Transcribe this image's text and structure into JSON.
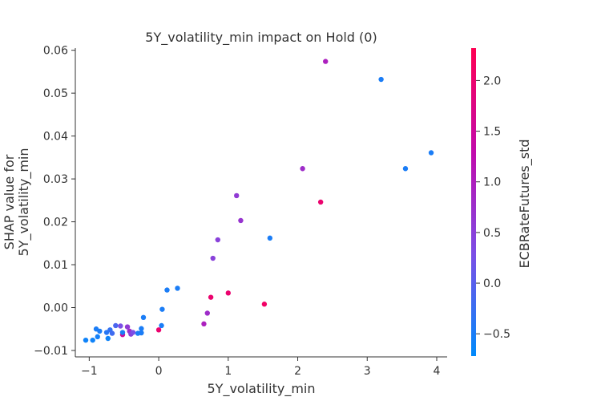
{
  "chart_data": {
    "type": "scatter",
    "title": "5Y_volatility_min impact on Hold (0)",
    "xlabel": "5Y_volatility_min",
    "ylabel": "SHAP value for\n5Y_volatility_min",
    "colorbar_label": "ECBRateFutures_std",
    "xlim": [
      -1.2,
      4.15
    ],
    "ylim": [
      -0.0115,
      0.0605
    ],
    "xticks": [
      -1,
      0,
      1,
      2,
      3,
      4
    ],
    "yticks": [
      -0.01,
      0.0,
      0.01,
      0.02,
      0.03,
      0.04,
      0.05,
      0.06
    ],
    "ytick_labels": [
      "−0.01",
      "0.00",
      "0.01",
      "0.02",
      "0.03",
      "0.04",
      "0.05",
      "0.06"
    ],
    "xtick_labels": [
      "−1",
      "0",
      "1",
      "2",
      "3",
      "4"
    ],
    "color_range": [
      -0.72,
      2.32
    ],
    "colorbar_ticks": [
      -0.5,
      0.0,
      0.5,
      1.0,
      1.5,
      2.0
    ],
    "colorbar_tick_labels": [
      "−0.5",
      "0.0",
      "0.5",
      "1.0",
      "1.5",
      "2.0"
    ],
    "colormap": [
      "#008afb",
      "#7b4fe6",
      "#c10bac",
      "#ff0052"
    ],
    "points": [
      {
        "x": -1.05,
        "y": -0.0076,
        "c": -0.6
      },
      {
        "x": -0.95,
        "y": -0.0076,
        "c": -0.6
      },
      {
        "x": -0.9,
        "y": -0.005,
        "c": -0.5
      },
      {
        "x": -0.85,
        "y": -0.0055,
        "c": -0.5
      },
      {
        "x": -0.88,
        "y": -0.0068,
        "c": -0.55
      },
      {
        "x": -0.75,
        "y": -0.0058,
        "c": -0.4
      },
      {
        "x": -0.73,
        "y": -0.0072,
        "c": -0.6
      },
      {
        "x": -0.7,
        "y": -0.0052,
        "c": -0.3
      },
      {
        "x": -0.67,
        "y": -0.006,
        "c": -0.2
      },
      {
        "x": -0.62,
        "y": -0.0042,
        "c": -0.1
      },
      {
        "x": -0.55,
        "y": -0.0043,
        "c": 0.3
      },
      {
        "x": -0.52,
        "y": -0.0063,
        "c": 1.5
      },
      {
        "x": -0.52,
        "y": -0.0058,
        "c": -0.5
      },
      {
        "x": -0.45,
        "y": -0.0045,
        "c": 0.6
      },
      {
        "x": -0.42,
        "y": -0.0055,
        "c": 0.8
      },
      {
        "x": -0.4,
        "y": -0.0062,
        "c": 0.5
      },
      {
        "x": -0.37,
        "y": -0.0058,
        "c": 0.3
      },
      {
        "x": -0.3,
        "y": -0.006,
        "c": -0.5
      },
      {
        "x": -0.25,
        "y": -0.0049,
        "c": -0.5
      },
      {
        "x": -0.25,
        "y": -0.0059,
        "c": -0.5
      },
      {
        "x": -0.22,
        "y": -0.0023,
        "c": -0.5
      },
      {
        "x": 0.0,
        "y": -0.0052,
        "c": 2.0
      },
      {
        "x": 0.04,
        "y": -0.0042,
        "c": -0.5
      },
      {
        "x": 0.05,
        "y": -0.0004,
        "c": -0.5
      },
      {
        "x": 0.12,
        "y": 0.0041,
        "c": -0.5
      },
      {
        "x": 0.27,
        "y": 0.0045,
        "c": -0.5
      },
      {
        "x": 0.65,
        "y": -0.0038,
        "c": 1.0
      },
      {
        "x": 0.7,
        "y": -0.0013,
        "c": 0.8
      },
      {
        "x": 0.75,
        "y": 0.0024,
        "c": 2.0
      },
      {
        "x": 0.78,
        "y": 0.0115,
        "c": 0.5
      },
      {
        "x": 0.85,
        "y": 0.0158,
        "c": 0.5
      },
      {
        "x": 1.0,
        "y": 0.0034,
        "c": 2.0
      },
      {
        "x": 1.12,
        "y": 0.0261,
        "c": 0.6
      },
      {
        "x": 1.18,
        "y": 0.0203,
        "c": 0.7
      },
      {
        "x": 1.52,
        "y": 0.0008,
        "c": 2.1
      },
      {
        "x": 1.6,
        "y": 0.0162,
        "c": -0.5
      },
      {
        "x": 2.07,
        "y": 0.0324,
        "c": 0.8
      },
      {
        "x": 2.33,
        "y": 0.0246,
        "c": 2.0
      },
      {
        "x": 2.4,
        "y": 0.0574,
        "c": 1.0
      },
      {
        "x": 3.2,
        "y": 0.0532,
        "c": -0.5
      },
      {
        "x": 3.55,
        "y": 0.0324,
        "c": -0.5
      },
      {
        "x": 3.92,
        "y": 0.0361,
        "c": -0.5
      }
    ]
  }
}
